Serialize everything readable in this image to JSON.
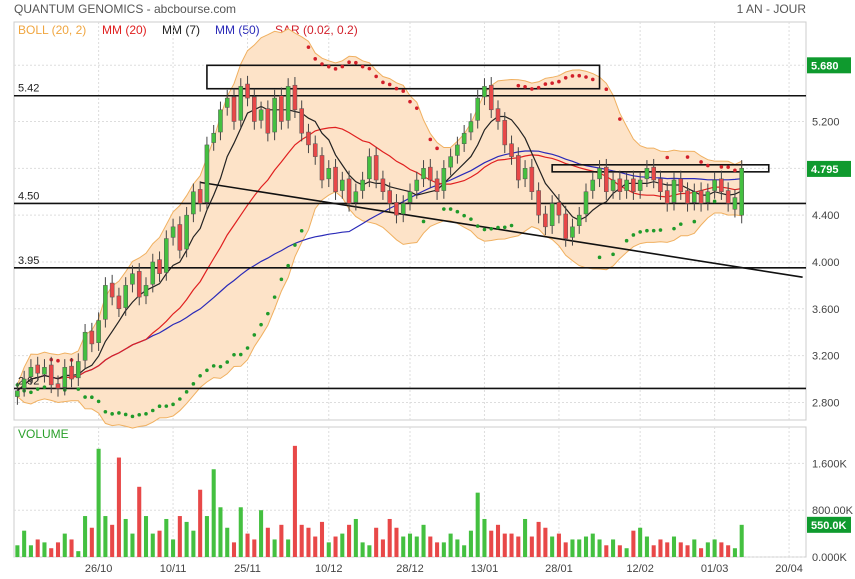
{
  "header": {
    "title": "QUANTUM GENOMICS - abcbourse.com",
    "period": "1 AN - JOUR"
  },
  "legend": [
    {
      "label": "BOLL (20, 2)",
      "color": "#f0a640"
    },
    {
      "label": "MM (20)",
      "color": "#e02020"
    },
    {
      "label": "MM (7)",
      "color": "#222222"
    },
    {
      "label": "MM (50)",
      "color": "#2a2ab8"
    },
    {
      "label": "SAR (0.02, 0.2)",
      "color": "#d21f2a"
    }
  ],
  "colors": {
    "up": "#44c040",
    "down": "#e84848",
    "band_fill": "#fde3c8",
    "band_line": "#f0b060",
    "grid": "#dddddd",
    "sar_up": "#1f9a2a",
    "sar_down": "#d21f2a",
    "last_price_bg": "#0f9a2e"
  },
  "chart_data": {
    "type": "candlestick",
    "price_axis": {
      "min": 2.65,
      "max": 6.05,
      "ticks": [
        "2.800",
        "3.200",
        "3.600",
        "4.000",
        "4.400",
        "4.800",
        "5.200",
        "5.680"
      ],
      "tick_values": [
        2.8,
        3.2,
        3.6,
        4.0,
        4.4,
        4.8,
        5.2,
        5.68
      ]
    },
    "volume_axis": {
      "min": 0,
      "max": 2000000,
      "ticks": [
        "0.000K",
        "800.00K",
        "1.600K"
      ],
      "tick_values": [
        0,
        800000,
        1600000
      ]
    },
    "x_ticks": [
      "26/10",
      "10/11",
      "25/11",
      "10/12",
      "28/12",
      "13/01",
      "28/01",
      "12/02",
      "01/03",
      "20/04"
    ],
    "x_tick_index": [
      12,
      23,
      34,
      46,
      58,
      69,
      80,
      92,
      103,
      114
    ],
    "total_slots": 117,
    "horizontal_levels": [
      {
        "label": "5.42",
        "value": 5.42
      },
      {
        "label": "4.50",
        "value": 4.5
      },
      {
        "label": "3.95",
        "value": 3.95
      },
      {
        "label": "2.92",
        "value": 2.92
      }
    ],
    "trendline": {
      "from": [
        27,
        4.68
      ],
      "to": [
        116,
        3.87
      ]
    },
    "boxes": [
      {
        "from_index": 28,
        "to_index": 86,
        "low": 5.48,
        "high": 5.68
      },
      {
        "from_index": 79,
        "to_index": 111,
        "low": 4.77,
        "high": 4.83
      }
    ],
    "last_price_labels": [
      {
        "text": "5.680",
        "value": 5.68,
        "color": "#0f9a2e"
      },
      {
        "text": "4.795",
        "value": 4.795,
        "color": "#0f9a2e"
      }
    ],
    "volume_label": {
      "text": "550.0K",
      "value": 550000
    },
    "headings": {
      "volume": "VOLUME"
    },
    "candles_close": [
      2.9,
      3.0,
      3.1,
      3.05,
      3.1,
      2.95,
      2.92,
      3.1,
      3.0,
      3.15,
      3.4,
      3.3,
      3.5,
      3.8,
      3.7,
      3.6,
      3.8,
      3.9,
      3.7,
      3.8,
      4.0,
      3.9,
      4.2,
      4.3,
      4.1,
      4.4,
      4.6,
      4.5,
      5.0,
      5.1,
      5.3,
      5.4,
      5.2,
      5.5,
      5.4,
      5.2,
      5.3,
      5.1,
      5.4,
      5.2,
      5.5,
      5.3,
      5.1,
      5.0,
      4.9,
      4.7,
      4.8,
      4.6,
      4.7,
      4.5,
      4.6,
      4.7,
      4.9,
      4.7,
      4.6,
      4.5,
      4.4,
      4.5,
      4.6,
      4.7,
      4.8,
      4.7,
      4.6,
      4.8,
      4.9,
      5.0,
      5.1,
      5.2,
      5.4,
      5.5,
      5.3,
      5.2,
      5.0,
      4.9,
      4.7,
      4.8,
      4.6,
      4.4,
      4.3,
      4.5,
      4.4,
      4.2,
      4.3,
      4.4,
      4.6,
      4.7,
      4.8,
      4.6,
      4.7,
      4.6,
      4.7,
      4.6,
      4.7,
      4.8,
      4.7,
      4.6,
      4.5,
      4.7,
      4.6,
      4.5,
      4.6,
      4.5,
      4.6,
      4.7,
      4.6,
      4.5,
      4.55,
      4.8
    ],
    "candles_open": [
      2.85,
      2.92,
      3.02,
      3.12,
      3.04,
      3.12,
      2.96,
      2.93,
      3.11,
      3.01,
      3.16,
      3.41,
      3.31,
      3.51,
      3.82,
      3.71,
      3.61,
      3.81,
      3.92,
      3.71,
      3.81,
      4.02,
      3.91,
      4.21,
      4.32,
      4.11,
      4.41,
      4.62,
      4.51,
      5.02,
      5.11,
      5.32,
      5.41,
      5.21,
      5.52,
      5.41,
      5.21,
      5.31,
      5.11,
      5.42,
      5.21,
      5.51,
      5.31,
      5.11,
      5.01,
      4.91,
      4.71,
      4.81,
      4.61,
      4.71,
      4.51,
      4.61,
      4.71,
      4.91,
      4.71,
      4.61,
      4.51,
      4.41,
      4.51,
      4.61,
      4.71,
      4.81,
      4.71,
      4.61,
      4.81,
      4.91,
      5.01,
      5.11,
      5.21,
      5.41,
      5.51,
      5.31,
      5.21,
      5.01,
      4.91,
      4.71,
      4.81,
      4.61,
      4.41,
      4.31,
      4.51,
      4.41,
      4.21,
      4.31,
      4.41,
      4.61,
      4.71,
      4.81,
      4.61,
      4.71,
      4.61,
      4.71,
      4.61,
      4.71,
      4.81,
      4.71,
      4.61,
      4.51,
      4.71,
      4.61,
      4.51,
      4.61,
      4.51,
      4.61,
      4.71,
      4.61,
      4.45,
      4.4
    ],
    "volumes": [
      200000,
      450000,
      200000,
      300000,
      250000,
      150000,
      250000,
      400000,
      300000,
      100000,
      700000,
      500000,
      1850000,
      700000,
      550000,
      1700000,
      650000,
      400000,
      1200000,
      700000,
      400000,
      450000,
      650000,
      300000,
      700000,
      600000,
      450000,
      1150000,
      700000,
      1500000,
      850000,
      500000,
      250000,
      850000,
      400000,
      300000,
      800000,
      500000,
      300000,
      550000,
      300000,
      1900000,
      550000,
      500000,
      350000,
      600000,
      250000,
      350000,
      400000,
      550000,
      650000,
      250000,
      200000,
      500000,
      300000,
      650000,
      500000,
      350000,
      400000,
      350000,
      550000,
      350000,
      250000,
      250000,
      400000,
      300000,
      200000,
      450000,
      1100000,
      650000,
      450000,
      550000,
      400000,
      400000,
      350000,
      650000,
      350000,
      600000,
      500000,
      350000,
      400000,
      250000,
      300000,
      300000,
      350000,
      400000,
      300000,
      200000,
      300000,
      200000,
      150000,
      450000,
      500000,
      350000,
      200000,
      300000,
      250000,
      350000,
      250000,
      200000,
      300000,
      150000,
      250000,
      300000,
      250000,
      200000,
      150000,
      550000
    ]
  }
}
